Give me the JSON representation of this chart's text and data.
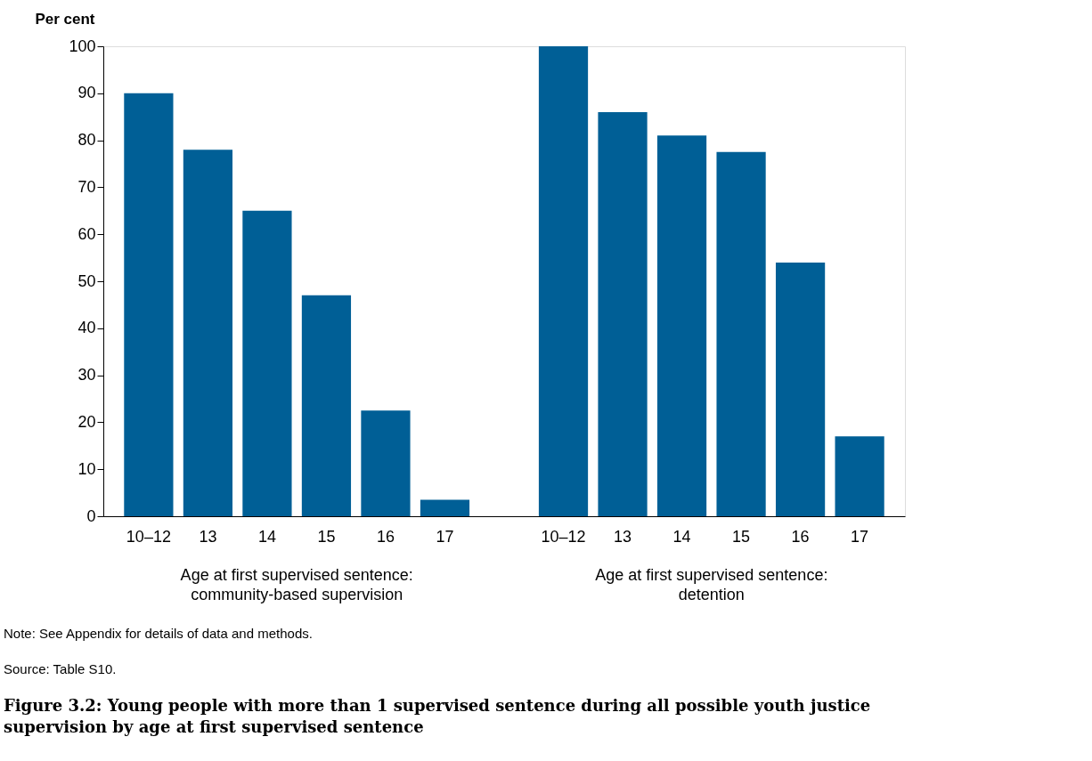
{
  "chart_data": {
    "type": "bar",
    "title": "Figure 3.2: Young people with more than 1 supervised sentence during all possible youth justice supervision by age at first supervised sentence",
    "ylabel": "Per cent",
    "categories": [
      "10–12",
      "13",
      "14",
      "15",
      "16",
      "17",
      null,
      "10–12",
      "13",
      "14",
      "15",
      "16",
      "17"
    ],
    "values": [
      90,
      78,
      65,
      47,
      22.5,
      3.5,
      null,
      100,
      86,
      81,
      77.5,
      54,
      17
    ],
    "color": "#005f96",
    "ylim": [
      0,
      100
    ],
    "yticks": [
      0,
      10,
      20,
      30,
      40,
      50,
      60,
      70,
      80,
      90,
      100
    ],
    "grid": false,
    "annotations": [
      "Age at first supervised sentence:\ncommunity-based supervision",
      "Age at first supervised sentence:\ndetention",
      "Note: See Appendix for details of data and methods.",
      "Source: Table S10."
    ]
  }
}
